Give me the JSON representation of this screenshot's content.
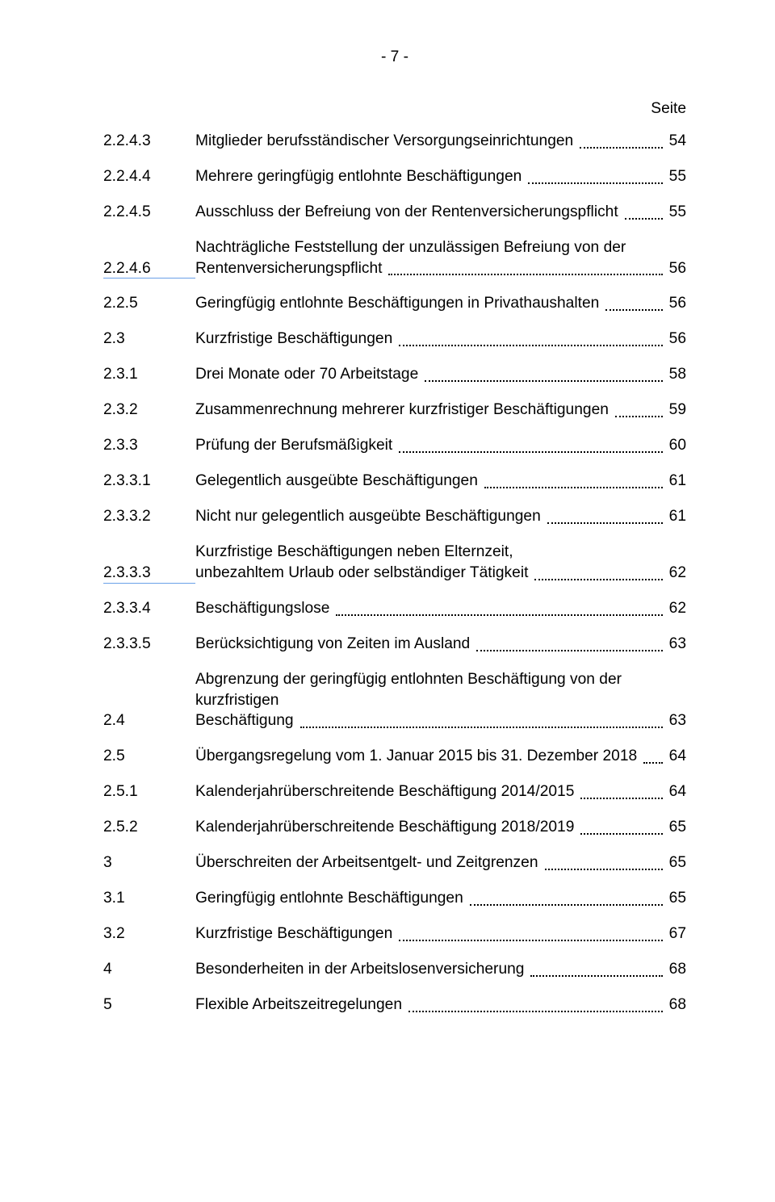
{
  "page_number_header": "- 7 -",
  "seite_label": "Seite",
  "toc": [
    {
      "num": "2.2.4.3",
      "title": "Mitglieder berufsständischer Versorgungseinrichtungen",
      "page": "54"
    },
    {
      "num": "2.2.4.4",
      "title": "Mehrere geringfügig entlohnte Beschäftigungen",
      "page": "55"
    },
    {
      "num": "2.2.4.5",
      "title": "Ausschluss der Befreiung von der Rentenversicherungspflicht",
      "page": "55"
    },
    {
      "num": "2.2.4.6",
      "title_line1": "Nachträgliche Feststellung der unzulässigen Befreiung von der",
      "title_line2": "Rentenversicherungspflicht",
      "page": "56",
      "multiline": true,
      "underline_indent": true
    },
    {
      "num": "2.2.5",
      "title": "Geringfügig entlohnte Beschäftigungen in Privathaushalten",
      "page": "56"
    },
    {
      "num": "2.3",
      "title": "Kurzfristige Beschäftigungen",
      "page": "56"
    },
    {
      "num": "2.3.1",
      "title": "Drei Monate oder 70 Arbeitstage",
      "page": "58"
    },
    {
      "num": "2.3.2",
      "title": "Zusammenrechnung mehrerer kurzfristiger Beschäftigungen",
      "page": "59"
    },
    {
      "num": "2.3.3",
      "title": "Prüfung der Berufsmäßigkeit",
      "page": "60"
    },
    {
      "num": "2.3.3.1",
      "title": "Gelegentlich ausgeübte Beschäftigungen",
      "page": "61"
    },
    {
      "num": "2.3.3.2",
      "title": "Nicht nur gelegentlich ausgeübte Beschäftigungen",
      "page": "61"
    },
    {
      "num": "2.3.3.3",
      "title_line1": "Kurzfristige Beschäftigungen neben Elternzeit,",
      "title_line2": "unbezahltem Urlaub oder selbständiger Tätigkeit",
      "page": "62",
      "multiline": true,
      "underline_indent": true
    },
    {
      "num": "2.3.3.4",
      "title": "Beschäftigungslose",
      "page": "62"
    },
    {
      "num": "2.3.3.5",
      "title": "Berücksichtigung von Zeiten im Ausland",
      "page": "63"
    },
    {
      "num": "2.4",
      "title_line1": "Abgrenzung der geringfügig entlohnten Beschäftigung von der kurzfristigen",
      "title_line2": "Beschäftigung",
      "page": "63",
      "multiline": true
    },
    {
      "num": "2.5",
      "title": "Übergangsregelung vom 1. Januar 2015 bis 31. Dezember 2018",
      "page": "64"
    },
    {
      "num": "2.5.1",
      "title": "Kalenderjahrüberschreitende Beschäftigung 2014/2015",
      "page": "64"
    },
    {
      "num": "2.5.2",
      "title": "Kalenderjahrüberschreitende Beschäftigung 2018/2019",
      "page": "65"
    },
    {
      "num": "3",
      "title": "Überschreiten der Arbeitsentgelt- und Zeitgrenzen",
      "page": "65"
    },
    {
      "num": "3.1",
      "title": "Geringfügig entlohnte Beschäftigungen",
      "page": "65"
    },
    {
      "num": "3.2",
      "title": "Kurzfristige Beschäftigungen",
      "page": "67"
    },
    {
      "num": "4",
      "title": "Besonderheiten in der Arbeitslosenversicherung",
      "page": "68"
    },
    {
      "num": "5",
      "title": "Flexible Arbeitszeitregelungen",
      "page": "68"
    }
  ]
}
